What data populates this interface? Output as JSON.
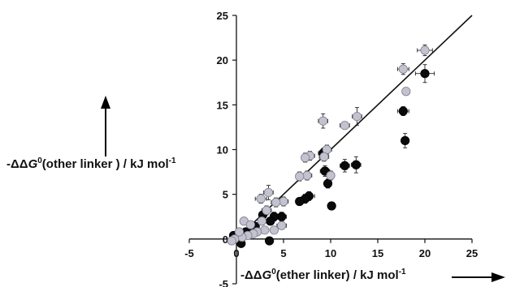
{
  "chart_data": {
    "type": "scatter",
    "title": "",
    "xlabel": {
      "prefix": "-ΔΔ",
      "var": "G",
      "sup": "0",
      "rest": "(ether linker) / kJ mol",
      "unit_sup": "-1"
    },
    "ylabel": {
      "prefix": "-ΔΔ",
      "var": "G",
      "sup": "0",
      "rest": "(other linker ) / kJ mol",
      "unit_sup": "-1"
    },
    "xlim": [
      -5,
      25
    ],
    "ylim": [
      -5,
      25
    ],
    "x_ticks": [
      "-5",
      "0",
      "5",
      "10",
      "15",
      "20",
      "25"
    ],
    "y_ticks": [
      "-5",
      "0",
      "5",
      "10",
      "15",
      "20",
      "25"
    ],
    "grid": false,
    "legend": "none",
    "identity_line": {
      "from": [
        0,
        0
      ],
      "to": [
        25,
        25
      ]
    },
    "series": [
      {
        "marker_color": "#0a0a0a",
        "points": [
          {
            "x": 20.0,
            "y": 18.5,
            "ex": 1.0,
            "ey": 1.0
          },
          {
            "x": 17.7,
            "y": 14.3,
            "ex": 0.6,
            "ey": 0.5
          },
          {
            "x": 17.9,
            "y": 11.0,
            "ex": 0.3,
            "ey": 0.8
          },
          {
            "x": 12.7,
            "y": 8.3,
            "ex": 0.5,
            "ey": 0.9
          },
          {
            "x": 11.5,
            "y": 8.2,
            "ex": 0.5,
            "ey": 0.7
          },
          {
            "x": 9.4,
            "y": 7.6,
            "ex": 0.5,
            "ey": 0.6
          },
          {
            "x": 9.7,
            "y": 6.2,
            "ex": 0.3,
            "ey": 0.5
          },
          {
            "x": 10.1,
            "y": 3.7,
            "ex": 0.3,
            "ey": 0.4
          },
          {
            "x": 7.7,
            "y": 4.8,
            "ex": 0.6,
            "ey": 0.5
          },
          {
            "x": 7.3,
            "y": 4.5,
            "ex": 0.5,
            "ey": 0.5
          },
          {
            "x": 6.7,
            "y": 4.2,
            "ex": 0.4,
            "ey": 0.4
          },
          {
            "x": 4.8,
            "y": 2.5,
            "ex": 0.5,
            "ey": 0.5
          },
          {
            "x": 4.0,
            "y": 2.5,
            "ex": 0.4,
            "ey": 0.5
          },
          {
            "x": 3.6,
            "y": 2.0,
            "ex": 0.4,
            "ey": 0.4
          },
          {
            "x": 2.8,
            "y": 2.7,
            "ex": 0.4,
            "ey": 0.4
          },
          {
            "x": 2.0,
            "y": 1.4,
            "ex": 0.3,
            "ey": 0.4
          },
          {
            "x": 1.5,
            "y": 1.0,
            "ex": 0.3,
            "ey": 0.3
          },
          {
            "x": 1.0,
            "y": 0.8,
            "ex": 0.3,
            "ey": 0.3
          },
          {
            "x": 0.5,
            "y": 0.3,
            "ex": 0.3,
            "ey": 0.3
          },
          {
            "x": -0.3,
            "y": 0.4,
            "ex": 0.3,
            "ey": 0.3
          },
          {
            "x": 3.5,
            "y": -0.2,
            "ex": 0.4,
            "ey": 0.4
          },
          {
            "x": 0.5,
            "y": -0.5,
            "ex": 0.3,
            "ey": 0.3
          },
          {
            "x": 9.2,
            "y": 9.6,
            "ex": 0.5,
            "ey": 0.5
          }
        ]
      },
      {
        "marker_color": "#c3c3d0",
        "points": [
          {
            "x": 20.0,
            "y": 21.1,
            "ex": 0.8,
            "ey": 0.6
          },
          {
            "x": 17.7,
            "y": 19.0,
            "ex": 0.6,
            "ey": 0.6
          },
          {
            "x": 18.0,
            "y": 16.5,
            "ex": 0.4,
            "ey": 0.4
          },
          {
            "x": 12.8,
            "y": 13.7,
            "ex": 0.5,
            "ey": 1.0
          },
          {
            "x": 11.5,
            "y": 12.7,
            "ex": 0.5,
            "ey": 0.4
          },
          {
            "x": 9.2,
            "y": 13.2,
            "ex": 0.5,
            "ey": 0.8
          },
          {
            "x": 9.6,
            "y": 10.0,
            "ex": 0.5,
            "ey": 0.5
          },
          {
            "x": 9.3,
            "y": 9.2,
            "ex": 0.5,
            "ey": 0.5
          },
          {
            "x": 10.0,
            "y": 7.1,
            "ex": 0.4,
            "ey": 0.5
          },
          {
            "x": 7.8,
            "y": 9.3,
            "ex": 0.5,
            "ey": 0.5
          },
          {
            "x": 7.3,
            "y": 9.1,
            "ex": 0.4,
            "ey": 0.5
          },
          {
            "x": 7.5,
            "y": 7.1,
            "ex": 0.5,
            "ey": 0.5
          },
          {
            "x": 6.7,
            "y": 7.0,
            "ex": 0.4,
            "ey": 0.5
          },
          {
            "x": 3.4,
            "y": 5.2,
            "ex": 0.5,
            "ey": 0.8
          },
          {
            "x": 2.6,
            "y": 4.5,
            "ex": 0.6,
            "ey": 0.5
          },
          {
            "x": 5.0,
            "y": 4.2,
            "ex": 0.5,
            "ey": 0.5
          },
          {
            "x": 4.2,
            "y": 4.1,
            "ex": 0.5,
            "ey": 0.5
          },
          {
            "x": 3.2,
            "y": 3.2,
            "ex": 0.5,
            "ey": 0.5
          },
          {
            "x": 2.7,
            "y": 2.0,
            "ex": 0.4,
            "ey": 0.4
          },
          {
            "x": 4.8,
            "y": 1.5,
            "ex": 0.5,
            "ey": 0.4
          },
          {
            "x": 4.0,
            "y": 1.0,
            "ex": 0.4,
            "ey": 0.4
          },
          {
            "x": 3.0,
            "y": 1.0,
            "ex": 0.4,
            "ey": 0.4
          },
          {
            "x": 2.2,
            "y": 0.8,
            "ex": 0.4,
            "ey": 0.4
          },
          {
            "x": 1.8,
            "y": 0.6,
            "ex": 0.4,
            "ey": 0.4
          },
          {
            "x": 1.2,
            "y": 0.4,
            "ex": 0.3,
            "ey": 0.3
          },
          {
            "x": 0.8,
            "y": 2.0,
            "ex": 0.3,
            "ey": 0.3
          },
          {
            "x": 0.6,
            "y": 0.2,
            "ex": 0.3,
            "ey": 0.3
          },
          {
            "x": -0.2,
            "y": 0.0,
            "ex": 0.3,
            "ey": 0.3
          },
          {
            "x": -0.5,
            "y": -0.2,
            "ex": 0.3,
            "ey": 0.3
          },
          {
            "x": 0.3,
            "y": 0.8,
            "ex": 0.3,
            "ey": 0.3
          },
          {
            "x": 1.5,
            "y": 1.6,
            "ex": 0.3,
            "ey": 0.3
          }
        ]
      }
    ]
  }
}
